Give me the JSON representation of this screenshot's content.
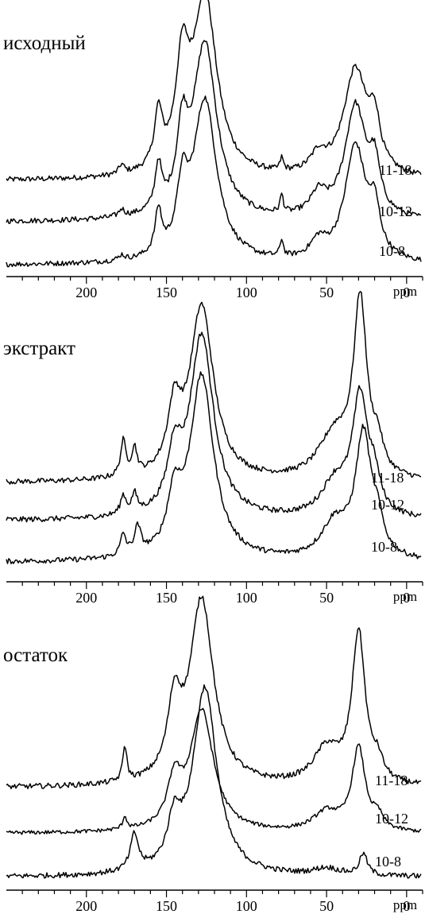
{
  "chart_data": [
    {
      "type": "line",
      "title": "исходный",
      "xlabel": "ppm",
      "xlim": [
        250,
        -10
      ],
      "x_reversed": true,
      "x_ticks": [
        200,
        150,
        100,
        50,
        0
      ],
      "y_axis_shown": false,
      "grid": false,
      "series": [
        {
          "name": "11-18",
          "peaks": [
            [
              126,
              1.0,
              9
            ],
            [
              140,
              0.55,
              5
            ],
            [
              155,
              0.3,
              3
            ],
            [
              178,
              0.05,
              2
            ],
            [
              78,
              0.07,
              1.2
            ],
            [
              32,
              0.6,
              9
            ],
            [
              20,
              0.25,
              4
            ],
            [
              55,
              0.1,
              6
            ]
          ],
          "baseline": 0.02
        },
        {
          "name": "10-12",
          "peaks": [
            [
              126,
              0.98,
              9
            ],
            [
              140,
              0.4,
              4
            ],
            [
              155,
              0.25,
              2.5
            ],
            [
              178,
              0.04,
              2
            ],
            [
              78,
              0.1,
              1.2
            ],
            [
              32,
              0.63,
              8
            ],
            [
              20,
              0.25,
              4
            ],
            [
              55,
              0.12,
              6
            ]
          ],
          "baseline": 0.02
        },
        {
          "name": "10-8",
          "peaks": [
            [
              126,
              0.95,
              9
            ],
            [
              140,
              0.35,
              4
            ],
            [
              155,
              0.25,
              2.5
            ],
            [
              178,
              0.03,
              2
            ],
            [
              78,
              0.1,
              1.2
            ],
            [
              32,
              0.68,
              8
            ],
            [
              20,
              0.25,
              4
            ],
            [
              55,
              0.1,
              6
            ]
          ],
          "baseline": 0.01
        }
      ]
    },
    {
      "type": "line",
      "title": "экстракт",
      "xlabel": "ppm",
      "xlim": [
        250,
        -10
      ],
      "x_reversed": true,
      "x_ticks": [
        200,
        150,
        100,
        50,
        0
      ],
      "y_axis_shown": false,
      "grid": false,
      "series": [
        {
          "name": "11-18",
          "peaks": [
            [
              128,
              1.0,
              9
            ],
            [
              145,
              0.35,
              5
            ],
            [
              177,
              0.2,
              2
            ],
            [
              170,
              0.15,
              2
            ],
            [
              29,
              1.0,
              5
            ],
            [
              45,
              0.25,
              12
            ],
            [
              18,
              0.15,
              4
            ]
          ],
          "baseline": 0.02
        },
        {
          "name": "10-12",
          "peaks": [
            [
              128,
              1.0,
              9
            ],
            [
              145,
              0.3,
              5
            ],
            [
              177,
              0.1,
              2
            ],
            [
              170,
              0.1,
              2
            ],
            [
              29,
              0.65,
              6
            ],
            [
              45,
              0.18,
              10
            ],
            [
              20,
              0.15,
              4
            ]
          ],
          "baseline": 0.02
        },
        {
          "name": "10-8",
          "peaks": [
            [
              128,
              1.05,
              9
            ],
            [
              145,
              0.3,
              5
            ],
            [
              177,
              0.12,
              2
            ],
            [
              168,
              0.15,
              2.5
            ],
            [
              27,
              0.7,
              6
            ],
            [
              45,
              0.2,
              10
            ],
            [
              18,
              0.15,
              4
            ]
          ],
          "baseline": 0.01
        }
      ]
    },
    {
      "type": "line",
      "title": "остаток",
      "xlabel": "ppm",
      "xlim": [
        250,
        -10
      ],
      "x_reversed": true,
      "x_ticks": [
        200,
        150,
        100,
        50,
        0
      ],
      "y_axis_shown": false,
      "grid": false,
      "series": [
        {
          "name": "11-18",
          "peaks": [
            [
              128,
              1.05,
              9
            ],
            [
              145,
              0.4,
              5
            ],
            [
              176,
              0.2,
              1.5
            ],
            [
              30,
              0.85,
              5
            ],
            [
              50,
              0.2,
              10
            ],
            [
              18,
              0.1,
              4
            ]
          ],
          "baseline": 0.03
        },
        {
          "name": "10-12",
          "peaks": [
            [
              128,
              0.95,
              9
            ],
            [
              145,
              0.35,
              5
            ],
            [
              176,
              0.1,
              1.5
            ],
            [
              30,
              0.65,
              5
            ],
            [
              50,
              0.15,
              10
            ],
            [
              18,
              0.1,
              4
            ]
          ],
          "baseline": 0.02
        },
        {
          "name": "10-8",
          "peaks": [
            [
              126,
              1.05,
              9
            ],
            [
              145,
              0.25,
              5
            ],
            [
              170,
              0.2,
              3
            ],
            [
              27,
              0.12,
              3
            ],
            [
              50,
              0.04,
              10
            ]
          ],
          "baseline": 0.01
        }
      ]
    }
  ]
}
